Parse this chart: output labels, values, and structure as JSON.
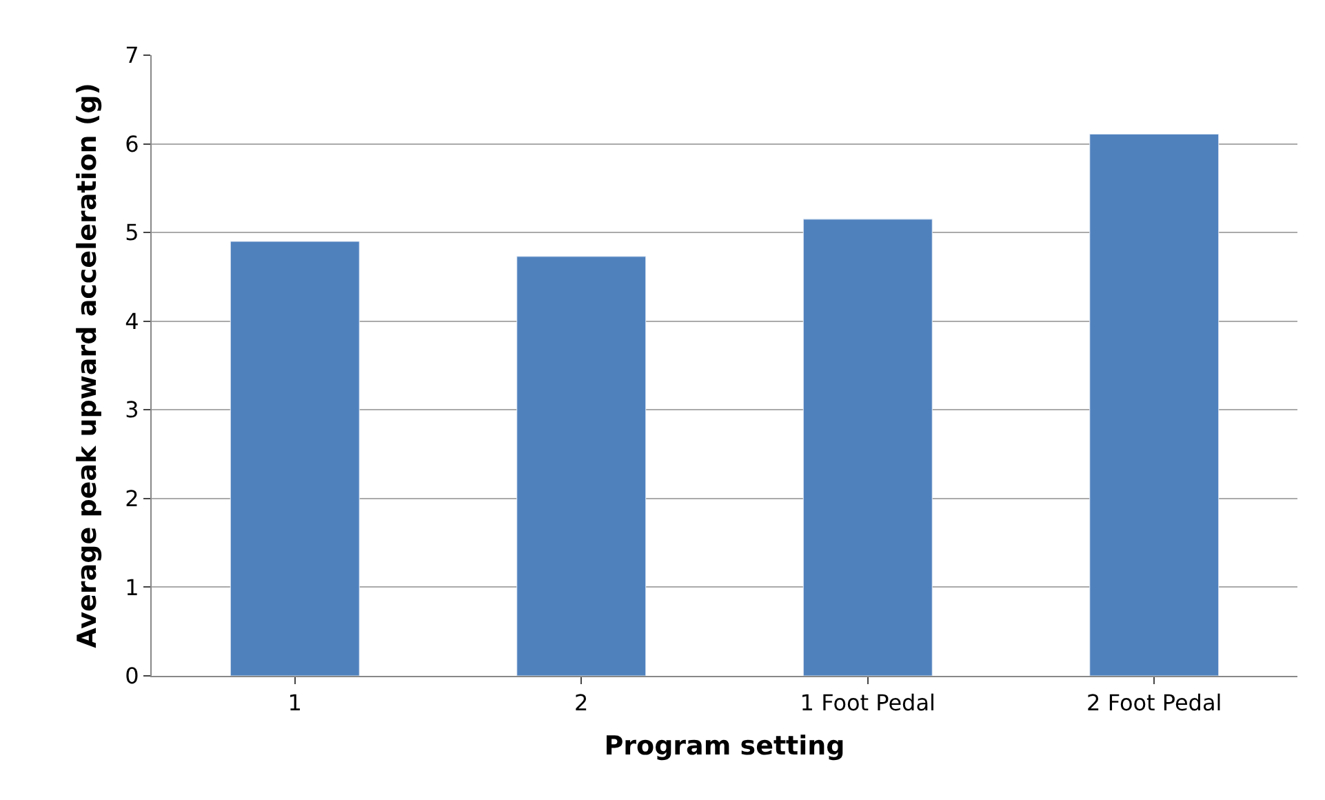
{
  "chart_data": {
    "type": "bar",
    "xlabel": "Program setting",
    "ylabel": "Average peak upward acceleration (g)",
    "categories": [
      "1",
      "2",
      "1 Foot Pedal",
      "2 Foot Pedal"
    ],
    "values": [
      4.9,
      4.73,
      5.15,
      6.11
    ],
    "color": "#4f81bd",
    "ylim": [
      0,
      7
    ],
    "yticks": [
      0,
      1,
      2,
      3,
      4,
      5,
      6,
      7
    ],
    "grid": "y"
  }
}
